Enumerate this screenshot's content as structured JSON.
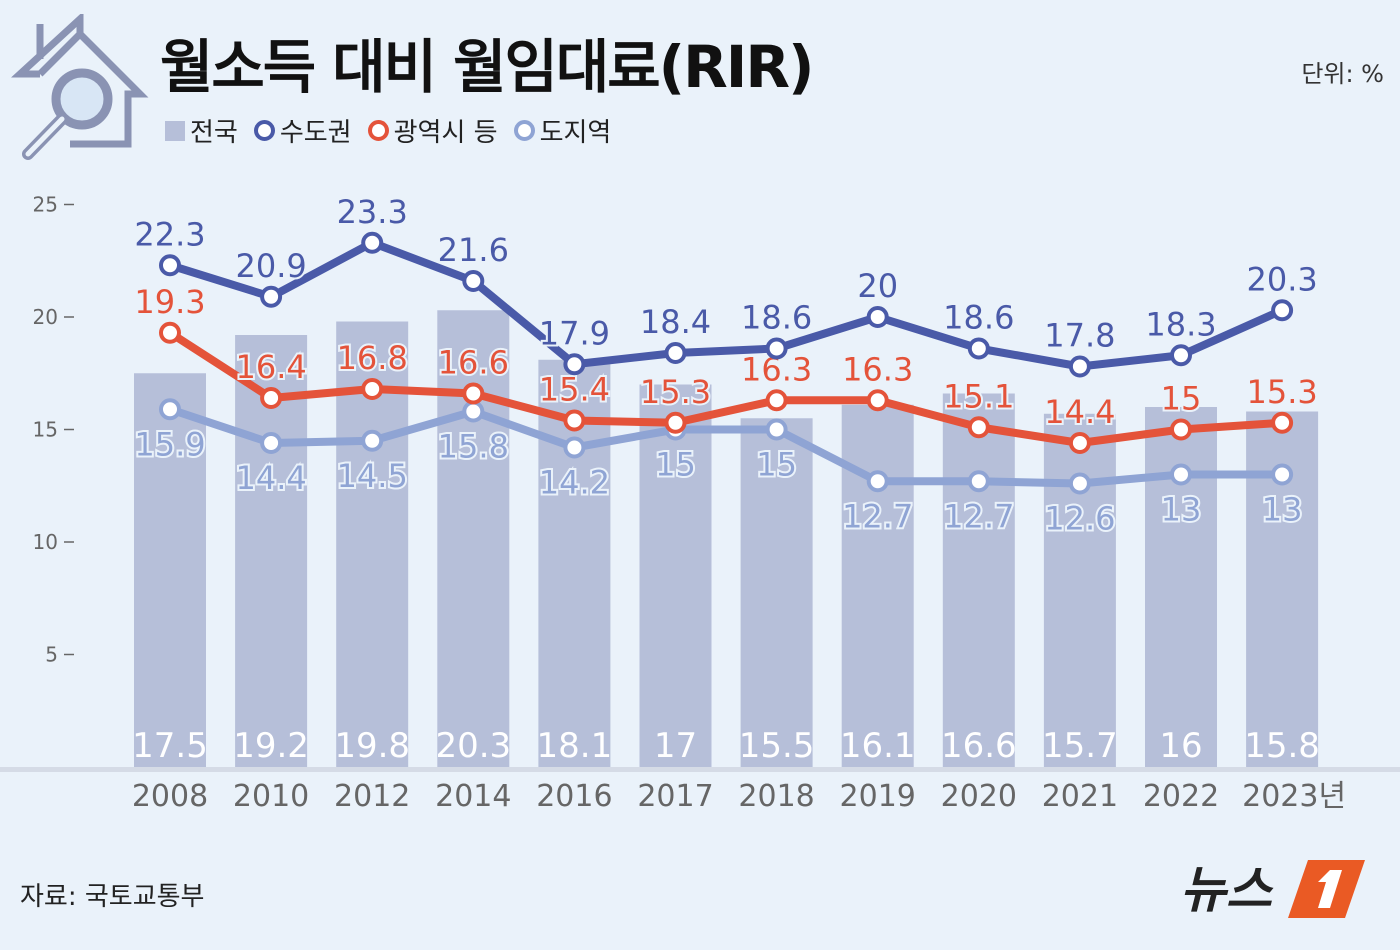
{
  "title": "월소득 대비 월임대료(RIR)",
  "unit": "단위: %",
  "source": "자료: 국토교통부",
  "logo_text": "뉴스1",
  "colors": {
    "background": "#eaf2fa",
    "national": "#b6bfd9",
    "capital": "#4a5aa8",
    "metro": "#e4533a",
    "province": "#8fa4d4"
  },
  "icons": [
    "house-magnifier-icon"
  ],
  "chart_data": {
    "type": "bar+line",
    "title": "월소득 대비 월임대료(RIR)",
    "categories": [
      "2008",
      "2010",
      "2012",
      "2014",
      "2016",
      "2017",
      "2018",
      "2019",
      "2020",
      "2021",
      "2022",
      "2023년"
    ],
    "yticks": [
      "25",
      "20",
      "15",
      "10",
      "5"
    ],
    "ylim": [
      0,
      25
    ],
    "legend_placement": "top-left",
    "grid": false,
    "series": [
      {
        "name": "전국",
        "kind": "bar",
        "color": "#b6bfd9",
        "values": [
          17.5,
          19.2,
          19.8,
          20.3,
          18.1,
          17,
          15.5,
          16.1,
          16.6,
          15.7,
          16,
          15.8
        ]
      },
      {
        "name": "수도권",
        "kind": "line",
        "color": "#4a5aa8",
        "values": [
          22.3,
          20.9,
          23.3,
          21.6,
          17.9,
          18.4,
          18.6,
          20,
          18.6,
          17.8,
          18.3,
          20.3
        ]
      },
      {
        "name": "광역시 등",
        "kind": "line",
        "color": "#e4533a",
        "values": [
          19.3,
          16.4,
          16.8,
          16.6,
          15.4,
          15.3,
          16.3,
          16.3,
          15.1,
          14.4,
          15,
          15.3
        ]
      },
      {
        "name": "도지역",
        "kind": "line",
        "color": "#8fa4d4",
        "values": [
          15.9,
          14.4,
          14.5,
          15.8,
          14.2,
          15,
          15,
          12.7,
          12.7,
          12.6,
          13,
          13
        ]
      }
    ]
  }
}
